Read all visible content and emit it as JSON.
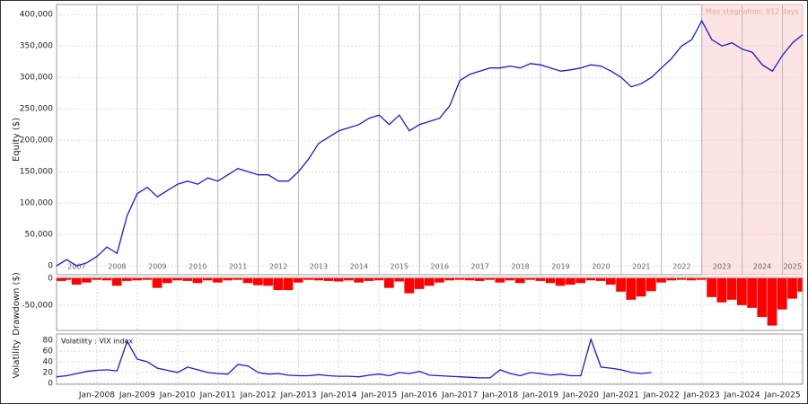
{
  "chart_data": [
    {
      "type": "line",
      "ylabel": "Equity ($)",
      "color": "#1a1ad6",
      "grid": true,
      "xlim": [
        2007,
        2025.5
      ],
      "ylim": [
        -14000,
        416000
      ],
      "yticks": [
        0,
        {
          "value": 50000,
          "label": "50,000"
        },
        {
          "value": 100000,
          "label": "100,000"
        },
        {
          "value": 150000,
          "label": "150,000"
        },
        {
          "value": 200000,
          "label": "200,000"
        },
        {
          "value": 250000,
          "label": "250,000"
        },
        {
          "value": 300000,
          "label": "300,000"
        },
        {
          "value": 350000,
          "label": "350,000"
        },
        {
          "value": 400000,
          "label": "400,000"
        }
      ],
      "year_labels": [
        "2007",
        "2008",
        "2009",
        "2010",
        "2011",
        "2012",
        "2013",
        "2014",
        "2015",
        "2016",
        "2017",
        "2018",
        "2019",
        "2020",
        "2021",
        "2022",
        "2023",
        "2024",
        "2025"
      ],
      "stagnation": {
        "label": "Max stagnation: 912 days",
        "start": 2023,
        "end": 2025.5
      },
      "x": [
        2007,
        2007.25,
        2007.5,
        2007.75,
        2008,
        2008.25,
        2008.5,
        2008.75,
        2009,
        2009.25,
        2009.5,
        2009.75,
        2010,
        2010.25,
        2010.5,
        2010.75,
        2011,
        2011.25,
        2011.5,
        2011.75,
        2012,
        2012.25,
        2012.5,
        2012.75,
        2013,
        2013.25,
        2013.5,
        2013.75,
        2014,
        2014.25,
        2014.5,
        2014.75,
        2015,
        2015.25,
        2015.5,
        2015.75,
        2016,
        2016.25,
        2016.5,
        2016.75,
        2017,
        2017.25,
        2017.5,
        2017.75,
        2018,
        2018.25,
        2018.5,
        2018.75,
        2019,
        2019.25,
        2019.5,
        2019.75,
        2020,
        2020.25,
        2020.5,
        2020.75,
        2021,
        2021.25,
        2021.5,
        2021.75,
        2022,
        2022.25,
        2022.5,
        2022.75,
        2023,
        2023.25,
        2023.5,
        2023.75,
        2024,
        2024.25,
        2024.5,
        2024.75,
        2025,
        2025.25,
        2025.5
      ],
      "values": [
        0,
        10000,
        0,
        5000,
        15000,
        30000,
        20000,
        80000,
        115000,
        125000,
        110000,
        120000,
        130000,
        135000,
        130000,
        140000,
        135000,
        145000,
        155000,
        150000,
        145000,
        145000,
        135000,
        135000,
        150000,
        170000,
        195000,
        205000,
        215000,
        220000,
        225000,
        235000,
        240000,
        225000,
        240000,
        215000,
        225000,
        230000,
        235000,
        255000,
        295000,
        305000,
        310000,
        315000,
        315000,
        318000,
        315000,
        322000,
        320000,
        315000,
        310000,
        312000,
        315000,
        320000,
        318000,
        310000,
        300000,
        285000,
        290000,
        300000,
        315000,
        330000,
        350000,
        360000,
        390000,
        360000,
        350000,
        355000,
        345000,
        340000,
        320000,
        310000,
        335000,
        355000,
        368000
      ]
    },
    {
      "type": "bar",
      "ylabel": "Drawdown ($)",
      "color": "#ff0000",
      "grid": true,
      "xlim": [
        2007,
        2025.5
      ],
      "ylim": [
        -97000,
        1500
      ],
      "yticks": [
        0,
        {
          "value": -50000,
          "label": "-50,000"
        }
      ],
      "x": [
        2007,
        2007.25,
        2007.5,
        2007.75,
        2008,
        2008.25,
        2008.5,
        2008.75,
        2009,
        2009.25,
        2009.5,
        2009.75,
        2010,
        2010.25,
        2010.5,
        2010.75,
        2011,
        2011.25,
        2011.5,
        2011.75,
        2012,
        2012.25,
        2012.5,
        2012.75,
        2013,
        2013.25,
        2013.5,
        2013.75,
        2014,
        2014.25,
        2014.5,
        2014.75,
        2015,
        2015.25,
        2015.5,
        2015.75,
        2016,
        2016.25,
        2016.5,
        2016.75,
        2017,
        2017.25,
        2017.5,
        2017.75,
        2018,
        2018.25,
        2018.5,
        2018.75,
        2019,
        2019.25,
        2019.5,
        2019.75,
        2020,
        2020.25,
        2020.5,
        2020.75,
        2021,
        2021.25,
        2021.5,
        2021.75,
        2022,
        2022.25,
        2022.5,
        2022.75,
        2023,
        2023.25,
        2023.5,
        2023.75,
        2024,
        2024.25,
        2024.5,
        2024.75,
        2025,
        2025.25,
        2025.5
      ],
      "values": [
        -5000,
        -3000,
        -12000,
        -8000,
        -3000,
        -4000,
        -14000,
        -5000,
        -4000,
        -3000,
        -18000,
        -9000,
        -4000,
        -5000,
        -9000,
        -4000,
        -8000,
        -4000,
        -3000,
        -9000,
        -13000,
        -14000,
        -22000,
        -22000,
        -8000,
        -3000,
        -4000,
        -5000,
        -6000,
        -4000,
        -8000,
        -5000,
        -4000,
        -18000,
        -6000,
        -28000,
        -20000,
        -14000,
        -8000,
        -4000,
        -3000,
        -4000,
        -5000,
        -3000,
        -8000,
        -4000,
        -9000,
        -3000,
        -5000,
        -9000,
        -14000,
        -12000,
        -9000,
        -4000,
        -5000,
        -12000,
        -25000,
        -40000,
        -34000,
        -24000,
        -8000,
        -4000,
        -3000,
        -4000,
        -3000,
        -35000,
        -45000,
        -40000,
        -50000,
        -55000,
        -72000,
        -88000,
        -58000,
        -38000,
        -25000
      ]
    },
    {
      "type": "line",
      "ylabel": "Volatility",
      "legend": "Volatility : VIX index",
      "color": "#1a1ad6",
      "grid": true,
      "xlim": [
        2007,
        2025.5
      ],
      "ylim": [
        -2,
        92
      ],
      "yticks": [
        0,
        20,
        40,
        60,
        80
      ],
      "xticks": [
        {
          "value": 2008,
          "label": "Jan-2008"
        },
        {
          "value": 2009,
          "label": "Jan-2009"
        },
        {
          "value": 2010,
          "label": "Jan-2010"
        },
        {
          "value": 2011,
          "label": "Jan-2011"
        },
        {
          "value": 2012,
          "label": "Jan-2012"
        },
        {
          "value": 2013,
          "label": "Jan-2013"
        },
        {
          "value": 2014,
          "label": "Jan-2014"
        },
        {
          "value": 2015,
          "label": "Jan-2015"
        },
        {
          "value": 2016,
          "label": "Jan-2016"
        },
        {
          "value": 2017,
          "label": "Jan-2017"
        },
        {
          "value": 2018,
          "label": "Jan-2018"
        },
        {
          "value": 2019,
          "label": "Jan-2019"
        },
        {
          "value": 2020,
          "label": "Jan-2020"
        },
        {
          "value": 2021,
          "label": "Jan-2021"
        },
        {
          "value": 2022,
          "label": "Jan-2022"
        },
        {
          "value": 2023,
          "label": "Jan-2023"
        },
        {
          "value": 2024,
          "label": "Jan-2024"
        },
        {
          "value": 2025,
          "label": "Jan-2025"
        }
      ],
      "x": [
        2007,
        2007.25,
        2007.5,
        2007.75,
        2008,
        2008.25,
        2008.5,
        2008.75,
        2009,
        2009.25,
        2009.5,
        2009.75,
        2010,
        2010.25,
        2010.5,
        2010.75,
        2011,
        2011.25,
        2011.5,
        2011.75,
        2012,
        2012.25,
        2012.5,
        2012.75,
        2013,
        2013.25,
        2013.5,
        2013.75,
        2014,
        2014.25,
        2014.5,
        2014.75,
        2015,
        2015.25,
        2015.5,
        2015.75,
        2016,
        2016.25,
        2016.5,
        2016.75,
        2017,
        2017.25,
        2017.5,
        2017.75,
        2018,
        2018.25,
        2018.5,
        2018.75,
        2019,
        2019.25,
        2019.5,
        2019.75,
        2020,
        2020.25,
        2020.5,
        2020.75,
        2021,
        2021.25,
        2021.5,
        2021.75
      ],
      "values": [
        12,
        14,
        18,
        22,
        24,
        25,
        23,
        78,
        45,
        40,
        28,
        24,
        20,
        30,
        25,
        20,
        18,
        17,
        35,
        32,
        20,
        17,
        18,
        15,
        14,
        14,
        16,
        14,
        13,
        13,
        12,
        15,
        17,
        14,
        20,
        18,
        22,
        15,
        14,
        13,
        12,
        11,
        10,
        10,
        25,
        18,
        14,
        20,
        18,
        15,
        17,
        14,
        14,
        82,
        30,
        28,
        25,
        20,
        18,
        20
      ]
    }
  ]
}
